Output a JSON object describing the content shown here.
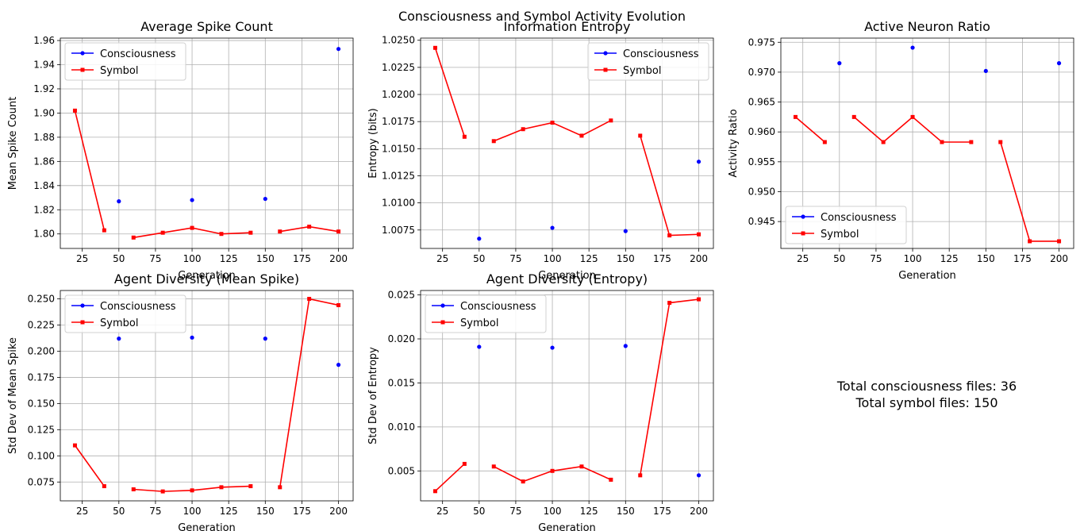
{
  "figure": {
    "title": "Consciousness and Symbol Activity Evolution",
    "summary_lines": [
      "Total consciousness files: 36",
      "Total symbol files: 150"
    ]
  },
  "colors": {
    "consciousness": "#0000ff",
    "symbol": "#ff0000",
    "grid": "#b0b0b0"
  },
  "legend_labels": [
    "Consciousness",
    "Symbol"
  ],
  "chart_data": [
    {
      "type": "line",
      "title": "Average Spike Count",
      "xlabel": "Generation",
      "ylabel": "Mean Spike Count",
      "xlim": [
        10,
        210
      ],
      "ylim": [
        1.788,
        1.962
      ],
      "xticks": [
        25,
        50,
        75,
        100,
        125,
        150,
        175,
        200
      ],
      "yticks": [
        1.8,
        1.82,
        1.84,
        1.86,
        1.88,
        1.9,
        1.92,
        1.94,
        1.96
      ],
      "ytick_labels": [
        "1.80",
        "1.82",
        "1.84",
        "1.86",
        "1.88",
        "1.90",
        "1.92",
        "1.94",
        "1.96"
      ],
      "grid": true,
      "legend": "upper-left",
      "series": [
        {
          "name": "Consciousness",
          "x": [
            50,
            100,
            150,
            200
          ],
          "y": [
            1.827,
            1.828,
            1.829,
            1.953
          ]
        },
        {
          "name": "Symbol",
          "segments": [
            {
              "x": [
                20,
                40
              ],
              "y": [
                1.902,
                1.803
              ]
            },
            {
              "x": [
                60,
                80,
                100,
                120,
                140
              ],
              "y": [
                1.797,
                1.801,
                1.805,
                1.8,
                1.801
              ]
            },
            {
              "x": [
                160,
                180,
                200
              ],
              "y": [
                1.802,
                1.806,
                1.802
              ]
            }
          ]
        }
      ]
    },
    {
      "type": "line",
      "title": "Information Entropy",
      "xlabel": "Generation",
      "ylabel": "Entropy (bits)",
      "xlim": [
        10,
        210
      ],
      "ylim": [
        1.0058,
        1.0252
      ],
      "xticks": [
        25,
        50,
        75,
        100,
        125,
        150,
        175,
        200
      ],
      "yticks": [
        1.0075,
        1.01,
        1.0125,
        1.015,
        1.0175,
        1.02,
        1.0225,
        1.025
      ],
      "ytick_labels": [
        "1.0075",
        "1.0100",
        "1.0125",
        "1.0150",
        "1.0175",
        "1.0200",
        "1.0225",
        "1.0250"
      ],
      "grid": true,
      "legend": "upper-right",
      "series": [
        {
          "name": "Consciousness",
          "x": [
            50,
            100,
            150,
            200
          ],
          "y": [
            1.0067,
            1.0077,
            1.0074,
            1.0138
          ]
        },
        {
          "name": "Symbol",
          "segments": [
            {
              "x": [
                20,
                40
              ],
              "y": [
                1.0243,
                1.0161
              ]
            },
            {
              "x": [
                60,
                80,
                100,
                120,
                140
              ],
              "y": [
                1.0157,
                1.0168,
                1.0174,
                1.0162,
                1.0176
              ]
            },
            {
              "x": [
                160,
                180,
                200
              ],
              "y": [
                1.0162,
                1.007,
                1.0071
              ]
            }
          ]
        }
      ]
    },
    {
      "type": "line",
      "title": "Active Neuron Ratio",
      "xlabel": "Generation",
      "ylabel": "Activity Ratio",
      "xlim": [
        10,
        210
      ],
      "ylim": [
        0.9405,
        0.9757
      ],
      "xticks": [
        25,
        50,
        75,
        100,
        125,
        150,
        175,
        200
      ],
      "yticks": [
        0.945,
        0.95,
        0.955,
        0.96,
        0.965,
        0.97,
        0.975
      ],
      "ytick_labels": [
        "0.945",
        "0.950",
        "0.955",
        "0.960",
        "0.965",
        "0.970",
        "0.975"
      ],
      "grid": true,
      "legend": "lower-left",
      "series": [
        {
          "name": "Consciousness",
          "x": [
            50,
            100,
            150,
            200
          ],
          "y": [
            0.9715,
            0.9741,
            0.9702,
            0.9715
          ]
        },
        {
          "name": "Symbol",
          "segments": [
            {
              "x": [
                20,
                40
              ],
              "y": [
                0.9625,
                0.9583
              ]
            },
            {
              "x": [
                60,
                80,
                100,
                120,
                140
              ],
              "y": [
                0.9625,
                0.9583,
                0.9625,
                0.9583,
                0.9583
              ]
            },
            {
              "x": [
                160,
                180,
                200
              ],
              "y": [
                0.9583,
                0.9417,
                0.9417
              ]
            }
          ]
        }
      ]
    },
    {
      "type": "line",
      "title": "Agent Diversity (Mean Spike)",
      "xlabel": "Generation",
      "ylabel": "Std Dev of Mean Spike",
      "xlim": [
        10,
        210
      ],
      "ylim": [
        0.057,
        0.258
      ],
      "xticks": [
        25,
        50,
        75,
        100,
        125,
        150,
        175,
        200
      ],
      "yticks": [
        0.075,
        0.1,
        0.125,
        0.15,
        0.175,
        0.2,
        0.225,
        0.25
      ],
      "ytick_labels": [
        "0.075",
        "0.100",
        "0.125",
        "0.150",
        "0.175",
        "0.200",
        "0.225",
        "0.250"
      ],
      "grid": true,
      "legend": "upper-left",
      "series": [
        {
          "name": "Consciousness",
          "x": [
            50,
            100,
            150,
            200
          ],
          "y": [
            0.212,
            0.213,
            0.212,
            0.187
          ]
        },
        {
          "name": "Symbol",
          "segments": [
            {
              "x": [
                20,
                40
              ],
              "y": [
                0.11,
                0.071
              ]
            },
            {
              "x": [
                60,
                80,
                100,
                120,
                140
              ],
              "y": [
                0.068,
                0.066,
                0.067,
                0.07,
                0.071
              ]
            },
            {
              "x": [
                160,
                180,
                200
              ],
              "y": [
                0.07,
                0.25,
                0.244
              ]
            }
          ]
        }
      ]
    },
    {
      "type": "line",
      "title": "Agent Diversity (Entropy)",
      "xlabel": "Generation",
      "ylabel": "Std Dev of Entropy",
      "xlim": [
        10,
        210
      ],
      "ylim": [
        0.0016,
        0.0255
      ],
      "xticks": [
        25,
        50,
        75,
        100,
        125,
        150,
        175,
        200
      ],
      "yticks": [
        0.005,
        0.01,
        0.015,
        0.02,
        0.025
      ],
      "ytick_labels": [
        "0.005",
        "0.010",
        "0.015",
        "0.020",
        "0.025"
      ],
      "grid": true,
      "legend": "upper-left",
      "series": [
        {
          "name": "Consciousness",
          "x": [
            50,
            100,
            150,
            200
          ],
          "y": [
            0.0191,
            0.019,
            0.0192,
            0.0045
          ]
        },
        {
          "name": "Symbol",
          "segments": [
            {
              "x": [
                20,
                40
              ],
              "y": [
                0.0027,
                0.0058
              ]
            },
            {
              "x": [
                60,
                80,
                100,
                120,
                140
              ],
              "y": [
                0.0055,
                0.0038,
                0.005,
                0.0055,
                0.004
              ]
            },
            {
              "x": [
                160,
                180,
                200
              ],
              "y": [
                0.0045,
                0.0241,
                0.0245
              ]
            }
          ]
        }
      ]
    }
  ]
}
